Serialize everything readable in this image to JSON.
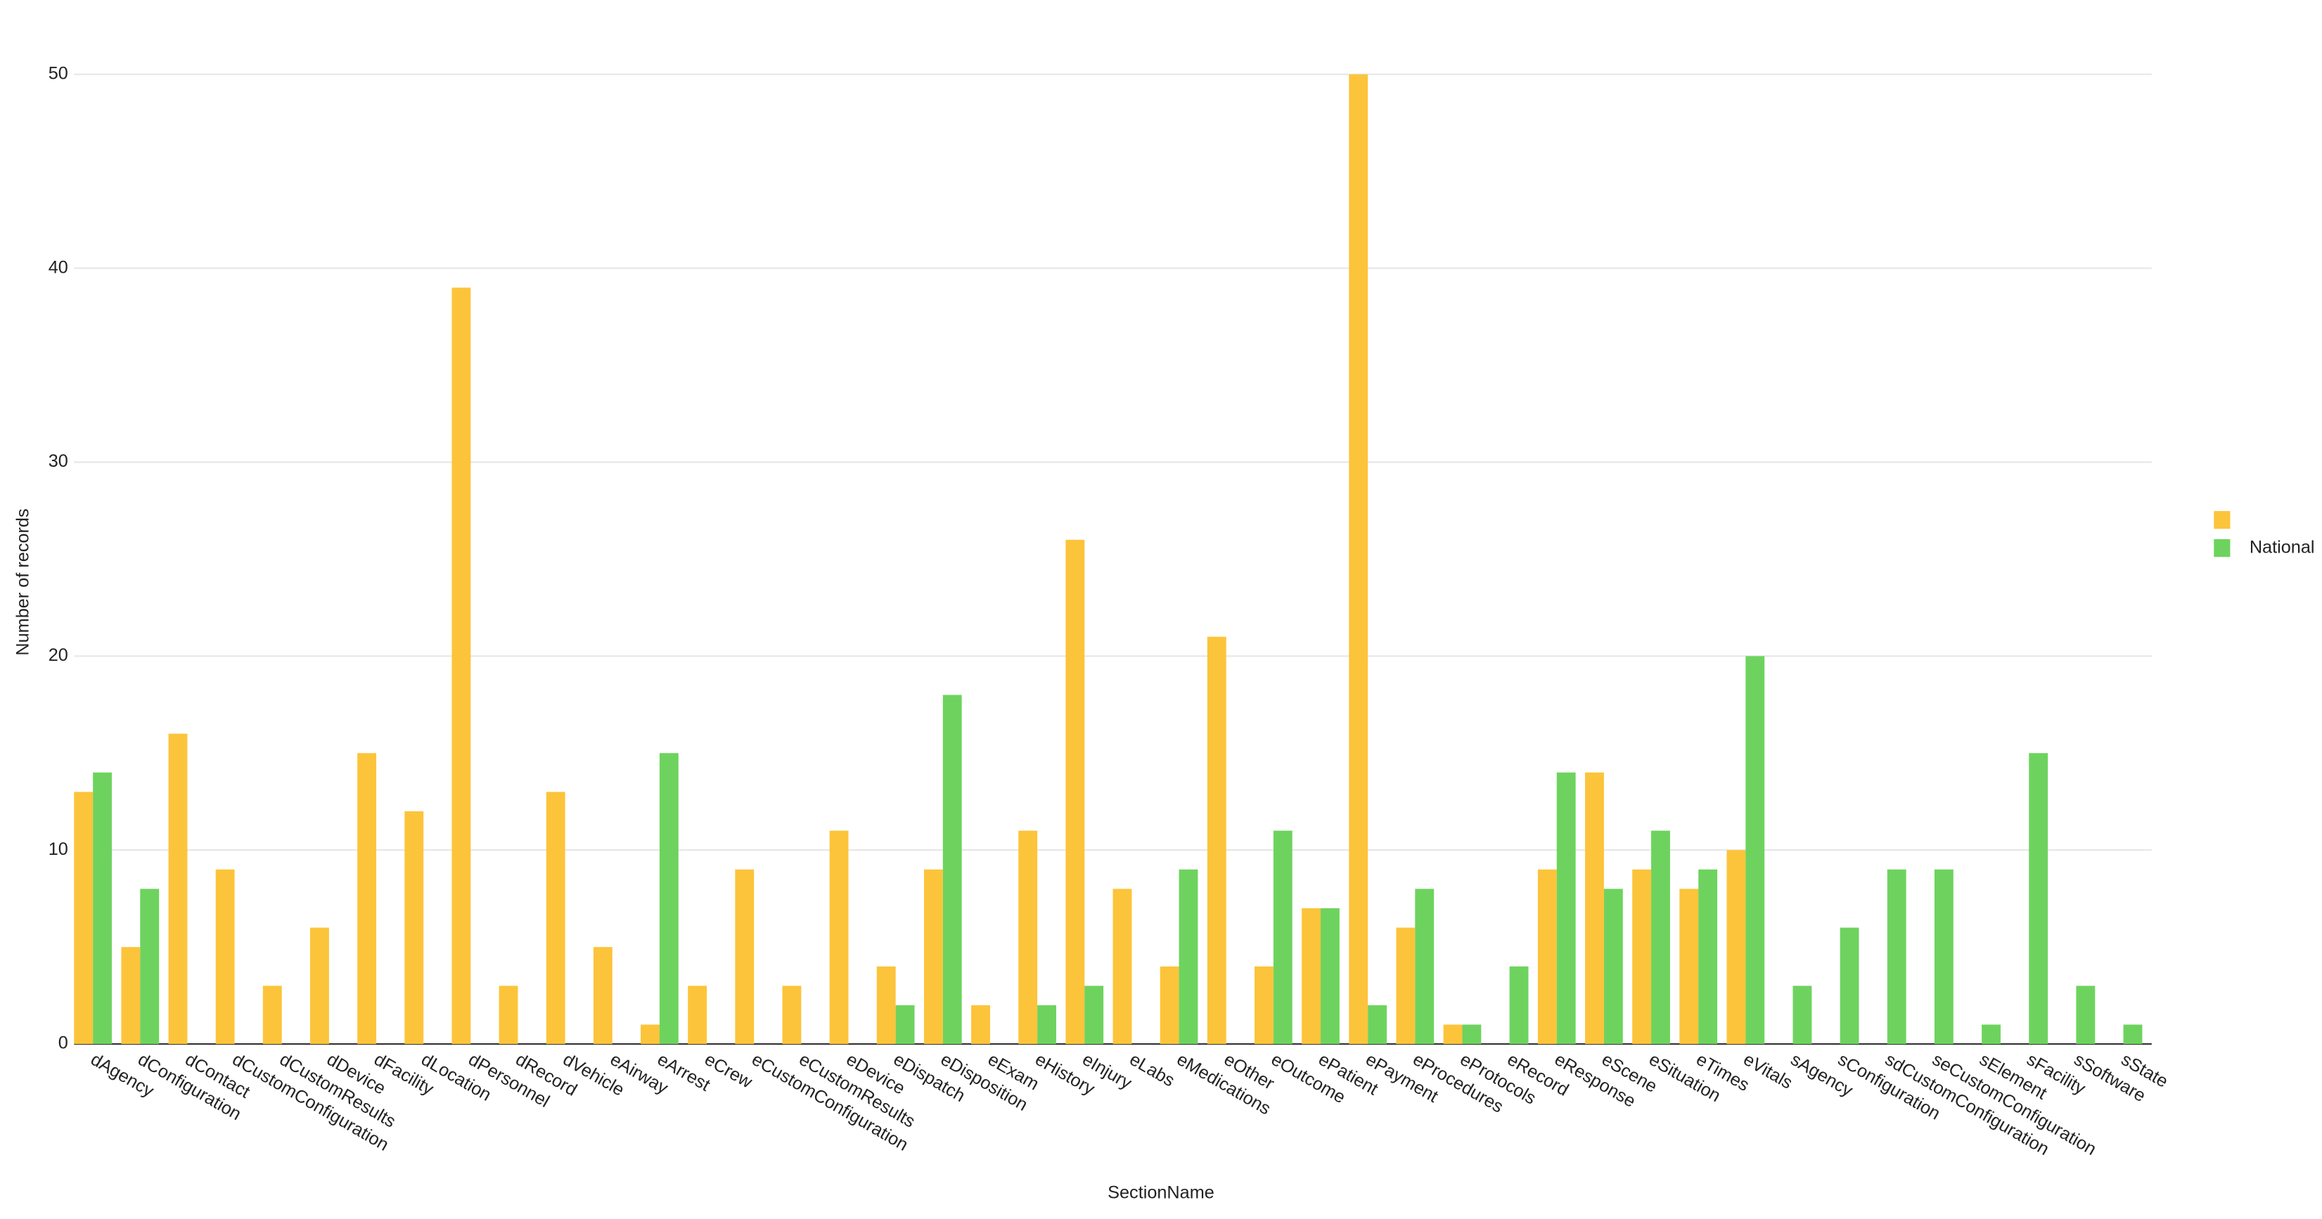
{
  "chart_data": {
    "type": "bar",
    "x_label": "SectionName",
    "y_label": "Number of records",
    "categories": [
      "dAgency",
      "dConfiguration",
      "dContact",
      "dCustomConfiguration",
      "dCustomResults",
      "dDevice",
      "dFacility",
      "dLocation",
      "dPersonnel",
      "dRecord",
      "dVehicle",
      "eAirway",
      "eArrest",
      "eCrew",
      "eCustomConfiguration",
      "eCustomResults",
      "eDevice",
      "eDispatch",
      "eDisposition",
      "eExam",
      "eHistory",
      "eInjury",
      "eLabs",
      "eMedications",
      "eOther",
      "eOutcome",
      "ePatient",
      "ePayment",
      "eProcedures",
      "eProtocols",
      "eRecord",
      "eResponse",
      "eScene",
      "eSituation",
      "eTimes",
      "eVitals",
      "sAgency",
      "sConfiguration",
      "sdCustomConfiguration",
      "seCustomConfiguration",
      "sElement",
      "sFacility",
      "sSoftware",
      "sState"
    ],
    "series": [
      {
        "name": null,
        "color": "#fcc43a",
        "values": [
          13,
          5,
          16,
          9,
          3,
          6,
          15,
          12,
          39,
          3,
          13,
          5,
          1,
          3,
          9,
          3,
          11,
          4,
          9,
          2,
          11,
          26,
          8,
          4,
          21,
          4,
          7,
          50,
          6,
          1,
          null,
          9,
          14,
          9,
          8,
          10,
          null,
          null,
          null,
          null,
          null,
          null,
          null,
          null
        ]
      },
      {
        "name": "National",
        "color": "#6dd35e",
        "values": [
          14,
          8,
          null,
          null,
          null,
          null,
          null,
          null,
          null,
          null,
          null,
          null,
          15,
          null,
          null,
          null,
          null,
          2,
          18,
          null,
          2,
          3,
          null,
          9,
          null,
          11,
          7,
          2,
          8,
          1,
          4,
          14,
          8,
          11,
          9,
          20,
          3,
          6,
          9,
          9,
          1,
          15,
          3,
          1
        ]
      }
    ],
    "ylim": [
      0,
      50
    ],
    "yticks": [
      0,
      10,
      20,
      30,
      40,
      50
    ],
    "grid": true,
    "legend": "right"
  }
}
